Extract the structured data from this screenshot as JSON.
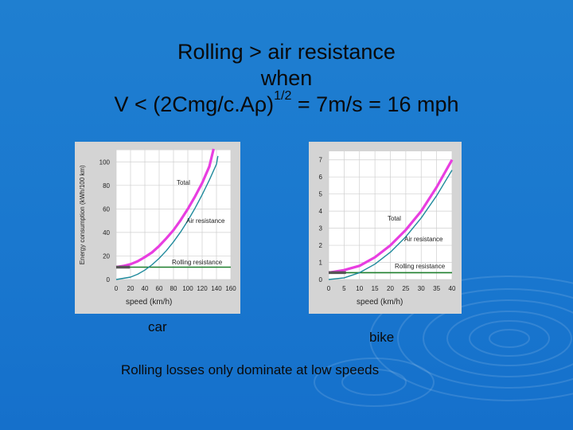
{
  "slide": {
    "title_line1": "Rolling  > air resistance",
    "title_line2": "when",
    "title_line3_pre": "V < (2Cmg/c.A",
    "title_line3_greek": "ρ",
    "title_line3_close": ")",
    "title_line3_sup": "1/2",
    "title_line3_post": " = 7m/s = 16 mph",
    "caption_car": "car",
    "caption_bike": "bike",
    "footer": "Rolling losses only dominate at low speeds"
  },
  "colors": {
    "background": "#1a78cf",
    "panel": "#d4d4d4",
    "total": "#e83ee0",
    "air": "#1f8a9c",
    "rolling": "#1e7f2d",
    "rolling_start": "#555555"
  },
  "chart_data": [
    {
      "type": "line",
      "name": "car",
      "xlabel": "speed  (km/h)",
      "ylabel": "Energy  consumption  (kWh/100 km)",
      "xlim": [
        0,
        160
      ],
      "ylim": [
        0,
        110
      ],
      "xticks": [
        0,
        20,
        40,
        60,
        80,
        100,
        120,
        140,
        160
      ],
      "yticks": [
        0,
        20,
        40,
        60,
        80,
        100
      ],
      "series": [
        {
          "name": "Total",
          "x": [
            0,
            10,
            20,
            30,
            40,
            50,
            60,
            70,
            80,
            90,
            100,
            110,
            120,
            130,
            136
          ],
          "y": [
            10.5,
            11.5,
            13,
            15.5,
            19,
            23,
            28.5,
            35,
            42,
            50.5,
            60,
            70.5,
            82,
            96,
            111
          ]
        },
        {
          "name": "Air resistance",
          "x": [
            0,
            20,
            30,
            40,
            50,
            60,
            70,
            80,
            90,
            100,
            110,
            120,
            130,
            140,
            142
          ],
          "y": [
            0,
            2,
            4.5,
            8,
            12.5,
            18,
            24.5,
            32,
            40.5,
            50,
            60.5,
            72,
            84.5,
            98,
            105
          ]
        },
        {
          "name": "Rolling resistance",
          "x": [
            0,
            160
          ],
          "y": [
            10.5,
            10.5
          ]
        }
      ],
      "annotations": [
        "Total",
        "Air resistance",
        "Rolling resistance"
      ]
    },
    {
      "type": "line",
      "name": "bike",
      "xlabel": "speed  (km/h)",
      "xlim": [
        0,
        40
      ],
      "ylim": [
        0,
        7.5
      ],
      "xticks": [
        0,
        5,
        10,
        15,
        20,
        25,
        30,
        35,
        40
      ],
      "yticks": [
        0,
        1,
        2,
        3,
        4,
        5,
        6,
        7
      ],
      "series": [
        {
          "name": "Total",
          "x": [
            0,
            5,
            10,
            15,
            20,
            25,
            30,
            35,
            40
          ],
          "y": [
            0.4,
            0.55,
            0.8,
            1.3,
            2.0,
            2.9,
            4.0,
            5.4,
            7.0
          ]
        },
        {
          "name": "Air resistance",
          "x": [
            0,
            5,
            10,
            15,
            20,
            25,
            30,
            35,
            40
          ],
          "y": [
            0,
            0.1,
            0.4,
            0.9,
            1.6,
            2.5,
            3.6,
            4.9,
            6.4
          ]
        },
        {
          "name": "Rolling resistance",
          "x": [
            0,
            40
          ],
          "y": [
            0.4,
            0.4
          ]
        }
      ],
      "annotations": [
        "Total",
        "Air resistance",
        "Rolling resistance"
      ]
    }
  ]
}
